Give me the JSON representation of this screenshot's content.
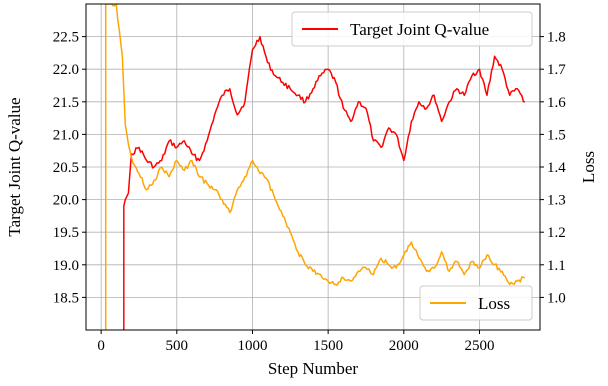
{
  "chart_data": {
    "type": "line",
    "xlabel": "Step Number",
    "ylabel_left": "Target Joint Q-value",
    "ylabel_right": "Loss",
    "xlim": [
      -100,
      2900
    ],
    "ylim_left": [
      18.0,
      23.0
    ],
    "ylim_right": [
      0.9,
      1.9
    ],
    "x_ticks": [
      0,
      500,
      1000,
      1500,
      2000,
      2500
    ],
    "y_ticks_left": [
      18.5,
      19.0,
      19.5,
      20.0,
      20.5,
      21.0,
      21.5,
      22.0,
      22.5
    ],
    "y_ticks_right": [
      1.0,
      1.1,
      1.2,
      1.3,
      1.4,
      1.5,
      1.6,
      1.7,
      1.8
    ],
    "x_tick_labels": [
      "0",
      "500",
      "1000",
      "1500",
      "2000",
      "2500"
    ],
    "y_tick_labels_left": [
      "18.5",
      "19.0",
      "19.5",
      "20.0",
      "20.5",
      "21.0",
      "21.5",
      "22.0",
      "22.5"
    ],
    "y_tick_labels_right": [
      "1.0",
      "1.1",
      "1.2",
      "1.3",
      "1.4",
      "1.5",
      "1.6",
      "1.7",
      "1.8"
    ],
    "grid": true,
    "series": [
      {
        "name": "Target Joint Q-value",
        "axis": "left",
        "color": "#ff0000",
        "x": [
          150,
          150,
          160,
          180,
          200,
          250,
          300,
          350,
          400,
          450,
          500,
          550,
          600,
          650,
          700,
          750,
          800,
          850,
          900,
          950,
          1000,
          1050,
          1100,
          1150,
          1200,
          1250,
          1300,
          1350,
          1400,
          1450,
          1500,
          1550,
          1600,
          1650,
          1700,
          1750,
          1800,
          1850,
          1900,
          1950,
          2000,
          2050,
          2100,
          2150,
          2200,
          2250,
          2300,
          2350,
          2400,
          2450,
          2500,
          2550,
          2600,
          2650,
          2700,
          2750,
          2800
        ],
        "y": [
          18.0,
          19.9,
          20.0,
          20.1,
          20.7,
          20.8,
          20.6,
          20.5,
          20.6,
          20.9,
          20.8,
          20.9,
          20.7,
          20.6,
          20.9,
          21.3,
          21.6,
          21.7,
          21.3,
          21.5,
          22.3,
          22.5,
          22.1,
          21.9,
          21.8,
          21.7,
          21.6,
          21.5,
          21.7,
          21.9,
          22.0,
          21.8,
          21.4,
          21.2,
          21.5,
          21.4,
          20.9,
          20.8,
          21.1,
          21.0,
          20.6,
          21.2,
          21.5,
          21.4,
          21.6,
          21.2,
          21.5,
          21.7,
          21.6,
          21.9,
          22.0,
          21.6,
          22.2,
          22.0,
          21.6,
          21.7,
          21.5
        ]
      },
      {
        "name": "Loss",
        "axis": "right",
        "color": "#ffa500",
        "x": [
          30,
          30,
          50,
          70,
          100,
          100,
          110,
          120,
          130,
          140,
          160,
          180,
          200,
          250,
          300,
          350,
          400,
          450,
          500,
          550,
          600,
          650,
          700,
          750,
          800,
          850,
          900,
          950,
          1000,
          1050,
          1100,
          1150,
          1200,
          1250,
          1300,
          1350,
          1400,
          1450,
          1500,
          1550,
          1600,
          1650,
          1700,
          1750,
          1800,
          1850,
          1900,
          1950,
          2000,
          2050,
          2100,
          2150,
          2200,
          2250,
          2300,
          2350,
          2400,
          2450,
          2500,
          2550,
          2600,
          2650,
          2700,
          2750,
          2800
        ],
        "y": [
          0.9,
          1.9,
          1.9,
          1.9,
          1.9,
          1.9,
          1.85,
          1.82,
          1.78,
          1.74,
          1.53,
          1.47,
          1.43,
          1.38,
          1.33,
          1.36,
          1.4,
          1.37,
          1.42,
          1.39,
          1.42,
          1.37,
          1.35,
          1.33,
          1.3,
          1.26,
          1.33,
          1.37,
          1.42,
          1.38,
          1.36,
          1.3,
          1.25,
          1.2,
          1.14,
          1.1,
          1.08,
          1.07,
          1.05,
          1.04,
          1.06,
          1.05,
          1.08,
          1.09,
          1.07,
          1.12,
          1.1,
          1.09,
          1.13,
          1.17,
          1.12,
          1.08,
          1.09,
          1.14,
          1.08,
          1.11,
          1.07,
          1.11,
          1.09,
          1.13,
          1.1,
          1.08,
          1.04,
          1.05,
          1.06
        ]
      }
    ],
    "legend_locations": [
      "top-right",
      "bottom-right"
    ]
  }
}
